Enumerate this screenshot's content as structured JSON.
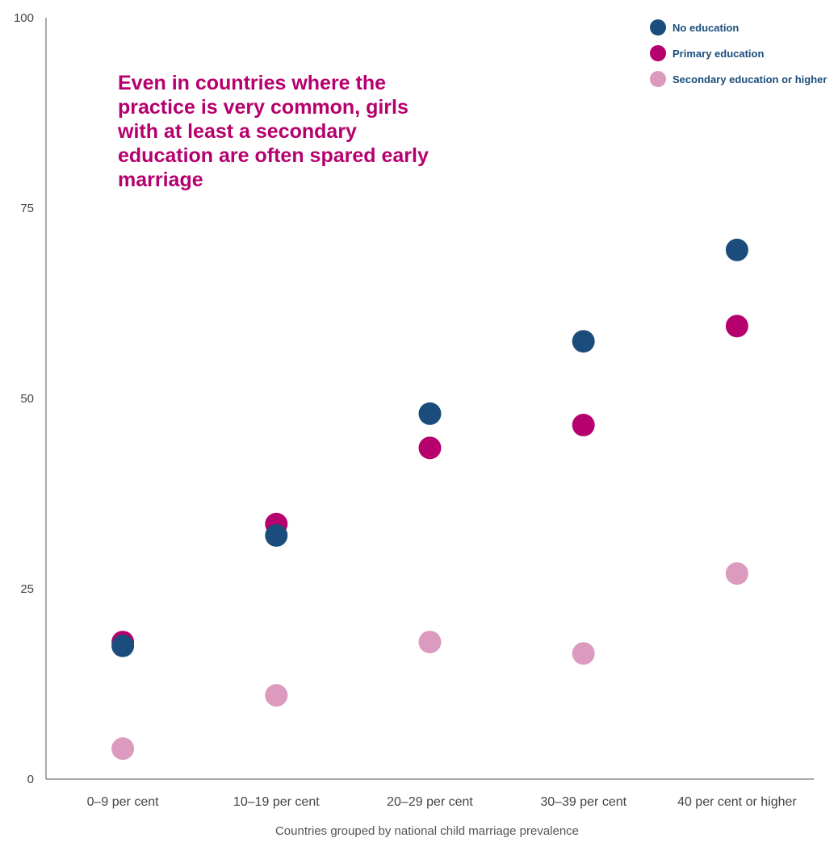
{
  "colors": {
    "no_education": "#1a4d7c",
    "primary": "#b5006e",
    "secondary": "#dc9abf",
    "axis": "#555555"
  },
  "chart_data": {
    "type": "scatter",
    "title": "",
    "annotation": "Even in countries where the practice is very common, girls with at least a secondary education are often spared early marriage",
    "xlabel": "Countries grouped by national child marriage prevalence",
    "ylabel": "",
    "ylim": [
      0,
      100
    ],
    "yticks": [
      "0",
      "25",
      "50",
      "75",
      "100"
    ],
    "categories": [
      "0–9 per cent",
      "10–19 per cent",
      "20–29 per cent",
      "30–39 per cent",
      "40 per cent or higher"
    ],
    "grid": false,
    "legend_position": "top-right",
    "series": [
      {
        "name": "Secondary education or higher",
        "color_key": "secondary",
        "values": [
          4,
          11,
          18,
          16.5,
          27
        ]
      },
      {
        "name": "Primary education",
        "color_key": "primary",
        "values": [
          18,
          33.5,
          43.5,
          46.5,
          59.5
        ]
      },
      {
        "name": "No education",
        "color_key": "no_education",
        "values": [
          17.5,
          32,
          48,
          57.5,
          69.5
        ]
      }
    ],
    "legend": [
      "No education",
      "Primary education",
      "Secondary education or higher"
    ]
  }
}
